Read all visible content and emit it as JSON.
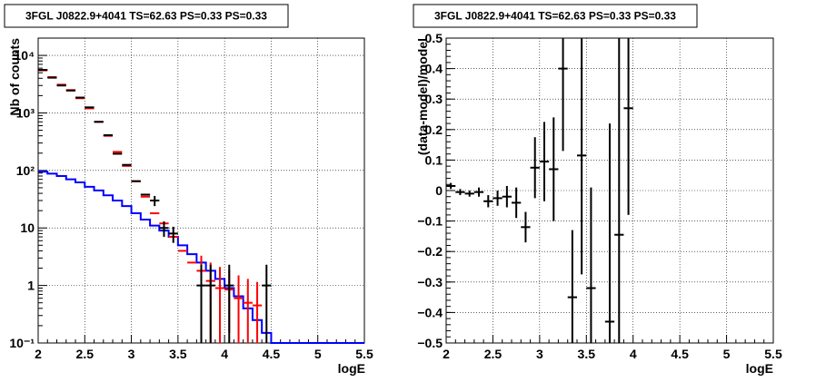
{
  "chart_data": [
    {
      "type": "step-histogram+points",
      "title": "3FGL J0822.9+4041 TS=62.63 PS=0.33 PS=0.33",
      "xlabel": "logE",
      "ylabel": "Nb of counts",
      "xlim": [
        2,
        5.5
      ],
      "ylim": [
        0.1,
        20000
      ],
      "yscale": "log",
      "grid": true,
      "xticks": [
        "2",
        "2.5",
        "3",
        "3.5",
        "4",
        "4.5",
        "5",
        "5.5"
      ],
      "yticks": [
        "10⁻¹",
        "1",
        "10",
        "10²",
        "10³",
        "10⁴"
      ],
      "bin_width": 0.1,
      "series": [
        {
          "color": "#ff0000",
          "style": "points",
          "x": [
            2.05,
            2.15,
            2.25,
            2.35,
            2.45,
            2.55,
            2.65,
            2.75,
            2.85,
            2.95,
            3.05,
            3.15,
            3.25,
            3.35,
            3.45,
            3.55,
            3.65,
            3.75,
            3.85,
            3.95,
            4.05,
            4.15,
            4.25,
            4.35
          ],
          "y": [
            5500,
            4200,
            3100,
            2500,
            1800,
            1200,
            700,
            400,
            210,
            120,
            65,
            35,
            18,
            12,
            7,
            4,
            2.5,
            1.8,
            1.2,
            0.9,
            0.85,
            0.6,
            0.5,
            0.45
          ],
          "err_low": [
            0,
            0,
            0,
            0,
            0,
            0,
            0,
            0,
            0,
            0,
            0,
            0,
            0,
            0,
            0,
            0,
            0,
            1.7,
            1.1,
            0.8,
            0.7,
            0.5,
            0.4,
            0.35
          ],
          "err_high": [
            0,
            0,
            0,
            0,
            0,
            0,
            0,
            0,
            0,
            0,
            0,
            0,
            0,
            0,
            0,
            0,
            0,
            1.5,
            1.3,
            1.2,
            1.0,
            0.9,
            0.8,
            0.7
          ]
        },
        {
          "color": "#000000",
          "style": "points",
          "x": [
            2.05,
            2.15,
            2.25,
            2.35,
            2.45,
            2.55,
            2.65,
            2.75,
            2.85,
            2.95,
            3.05,
            3.15,
            3.25,
            3.35,
            3.45,
            3.75,
            3.85,
            4.05,
            4.45
          ],
          "y": [
            5600,
            4100,
            3000,
            2450,
            1850,
            1250,
            700,
            410,
            195,
            125,
            65,
            38,
            30,
            10,
            8,
            1,
            1,
            1,
            1
          ],
          "err_low": [
            0,
            0,
            0,
            0,
            0,
            0,
            0,
            0,
            0,
            0,
            0,
            0,
            6,
            3,
            2.5,
            0.9,
            0.9,
            0.9,
            0.9
          ],
          "err_high": [
            0,
            0,
            0,
            0,
            0,
            0,
            0,
            0,
            0,
            0,
            0,
            0,
            6,
            3,
            2.5,
            1.3,
            1.3,
            1.3,
            1.3
          ]
        },
        {
          "color": "#0000ff",
          "style": "step",
          "edges": [
            2.0,
            2.1,
            2.2,
            2.3,
            2.4,
            2.5,
            2.6,
            2.7,
            2.8,
            2.9,
            3.0,
            3.1,
            3.2,
            3.3,
            3.4,
            3.5,
            3.6,
            3.7,
            3.8,
            3.9,
            4.0,
            4.1,
            4.2,
            4.3,
            4.4,
            4.5,
            5.5
          ],
          "y": [
            95,
            88,
            80,
            70,
            62,
            52,
            45,
            37,
            30,
            24,
            18,
            14,
            11,
            9,
            7,
            5,
            3.5,
            2.5,
            1.8,
            1.3,
            0.9,
            0.65,
            0.4,
            0.25,
            0.15,
            0.1
          ]
        }
      ]
    },
    {
      "type": "scatter-errorbars",
      "title": "3FGL J0822.9+4041 TS=62.63 PS=0.33 PS=0.33",
      "xlabel": "logE",
      "ylabel": "(data-model)/model",
      "xlim": [
        2,
        5.5
      ],
      "ylim": [
        -0.5,
        0.5
      ],
      "grid": true,
      "xticks": [
        "2",
        "2.5",
        "3",
        "3.5",
        "4",
        "4.5",
        "5",
        "5.5"
      ],
      "yticks": [
        "−0.5",
        "−0.4",
        "−0.3",
        "−0.2",
        "−0.1",
        "0",
        "0.1",
        "0.2",
        "0.3",
        "0.4",
        "0.5"
      ],
      "series": [
        {
          "color": "#000000",
          "x": [
            2.05,
            2.15,
            2.25,
            2.35,
            2.45,
            2.55,
            2.65,
            2.75,
            2.85,
            2.95,
            3.05,
            3.15,
            3.25,
            3.35,
            3.45,
            3.55,
            3.75,
            3.85,
            3.95
          ],
          "y": [
            0.015,
            -0.005,
            -0.01,
            -0.005,
            -0.035,
            -0.025,
            -0.02,
            -0.04,
            -0.12,
            0.075,
            0.095,
            0.07,
            0.4,
            -0.35,
            0.115,
            -0.32,
            -0.43,
            -0.145,
            0.27
          ],
          "err": [
            0.01,
            0.01,
            0.01,
            0.015,
            0.02,
            0.025,
            0.035,
            0.05,
            0.05,
            0.1,
            0.13,
            0.17,
            0.27,
            0.22,
            0.39,
            0.33,
            0.65,
            0.65,
            0.35
          ]
        }
      ]
    }
  ]
}
